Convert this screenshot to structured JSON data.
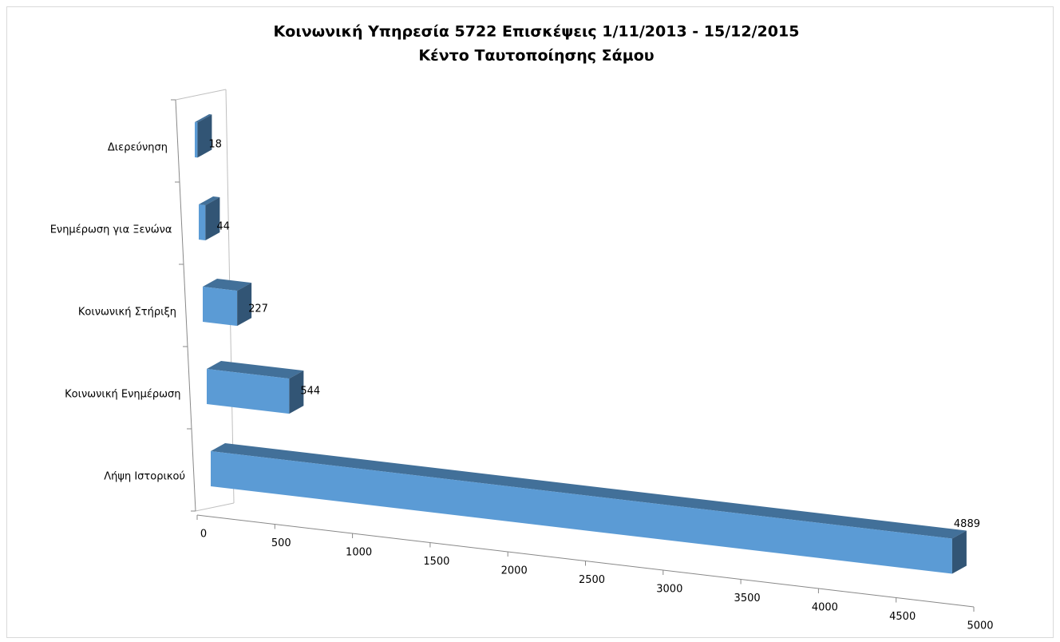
{
  "chart_data": {
    "type": "bar3d_horizontal",
    "title": [
      "Κοινωνική Υπηρεσία 5722 Επισκέψεις  1/11/2013 - 15/12/2015",
      "Κέντο Ταυτοποίησης Σάμου"
    ],
    "categories": [
      "Διερεύνηση",
      "Ενημέρωση για Ξενώνα",
      "Κοινωνική Στήριξη",
      "Κοινωνική Ενημέρωση",
      "Λήψη Ιστορικού"
    ],
    "values": [
      18,
      44,
      227,
      544,
      4889
    ],
    "color": "#5b9bd5",
    "xlim": [
      0,
      5000
    ],
    "xticks": [
      0,
      500,
      1000,
      1500,
      2000,
      2500,
      3000,
      3500,
      4000,
      4500,
      5000
    ]
  }
}
